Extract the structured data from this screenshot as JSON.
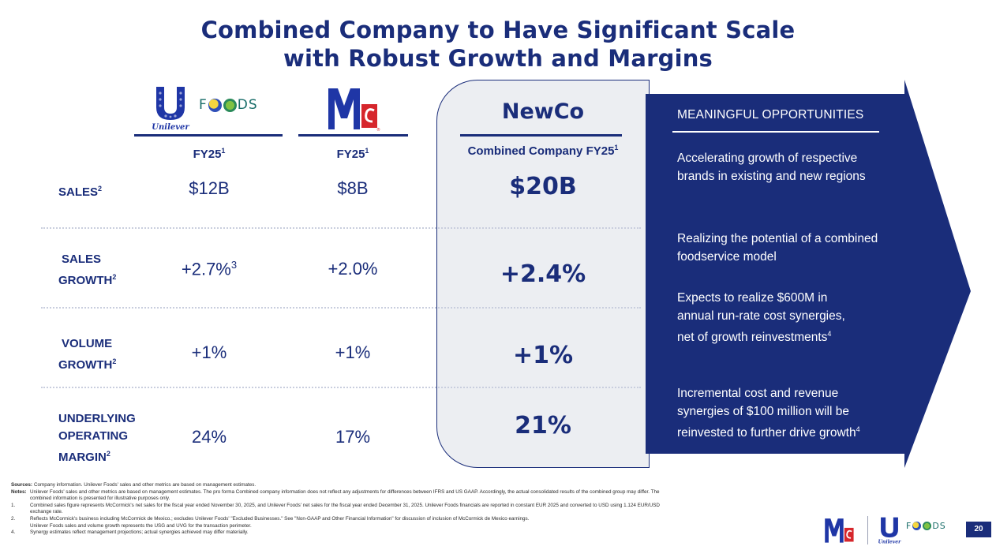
{
  "title": {
    "line1": "Combined Company to Have Significant Scale",
    "line2": "with Robust Growth and Margins"
  },
  "logos": {
    "unilever_text": "Unilever",
    "foods_f": "F",
    "foods_ds": "DS",
    "mccormick_mark": "Mc"
  },
  "columns": {
    "unilever_foods": {
      "label": "FY25",
      "sup": "1"
    },
    "mccormick": {
      "label": "FY25",
      "sup": "1"
    },
    "newco": {
      "title": "NewCo",
      "subtitle": "Combined Company FY25",
      "sup": "1"
    }
  },
  "rows": [
    {
      "label_line1": "SALES",
      "label_line2": "",
      "label_line3": "",
      "sup": "2",
      "unilever": "$12B",
      "unilever_sup": "",
      "mccormick": "$8B",
      "newco": "$20B"
    },
    {
      "label_line1": "SALES",
      "label_line2": "GROWTH",
      "label_line3": "",
      "sup": "2",
      "unilever": "+2.7%",
      "unilever_sup": "3",
      "mccormick": "+2.0%",
      "newco": "+2.4%"
    },
    {
      "label_line1": "VOLUME",
      "label_line2": "GROWTH",
      "label_line3": "",
      "sup": "2",
      "unilever": "+1%",
      "unilever_sup": "",
      "mccormick": "+1%",
      "newco": "+1%"
    },
    {
      "label_line1": "UNDERLYING",
      "label_line2": "OPERATING",
      "label_line3": "MARGIN",
      "sup": "2",
      "unilever": "24%",
      "unilever_sup": "",
      "mccormick": "17%",
      "newco": "21%"
    }
  ],
  "opportunities": {
    "title": "MEANINGFUL OPPORTUNITIES",
    "items": [
      {
        "text": "Accelerating growth of respective brands in existing and new regions",
        "sup": ""
      },
      {
        "text": "Realizing the potential of a combined foodservice model",
        "sup": ""
      },
      {
        "text": "Expects to realize $600M in annual run-rate cost synergies, net of growth reinvestments",
        "sup": "4"
      },
      {
        "text": "Incremental cost and revenue synergies of $100 million will be reinvested to further drive growth",
        "sup": "4"
      }
    ]
  },
  "notes": {
    "sources_label": "Sources:",
    "sources": "Company information. Unilever Foods' sales and other metrics are based on management estimates.",
    "notes_label": "Notes:",
    "notes_text": "Unilever Foods' sales and other metrics are based on management estimates. The pro forma Combined company information does not reflect any adjustments for differences between IFRS and US GAAP. Accordingly, the actual consolidated results of the combined group may differ. The",
    "notes_cont": "combined information is presented for illustrative purposes only.",
    "n1_label": "1.",
    "n1": "Combined sales figure represents McCormick's net sales for the fiscal year ended November 30, 2025, and Unilever Foods' net sales for the fiscal year ended December 31, 2025. Unilever Foods financials are reported in constant EUR 2025 and converted to USD using 1.124 EUR/USD",
    "n1_cont": "exchange rate.",
    "n2_label": "2.",
    "n2": "Reflects McCormick's business including McCormick de Mexico.; excludes Unilever Foods' \"Excluded Businesses.\" See \"Non-GAAP and Other Financial Information\" for discussion of inclusion of McCormick de Mexico earnings.",
    "n3": "Unilever Foods sales and volume growth represents the USG and UVG for the transaction perimeter.",
    "n4_label": "4.",
    "n4": "Synergy estimates reflect management projections; actual synergies achieved may differ materially."
  },
  "footer": {
    "page": "20"
  },
  "colors": {
    "navy": "#1a2d7a",
    "panel": "#eceef2",
    "teal": "#1a6e6a",
    "white": "#ffffff"
  }
}
